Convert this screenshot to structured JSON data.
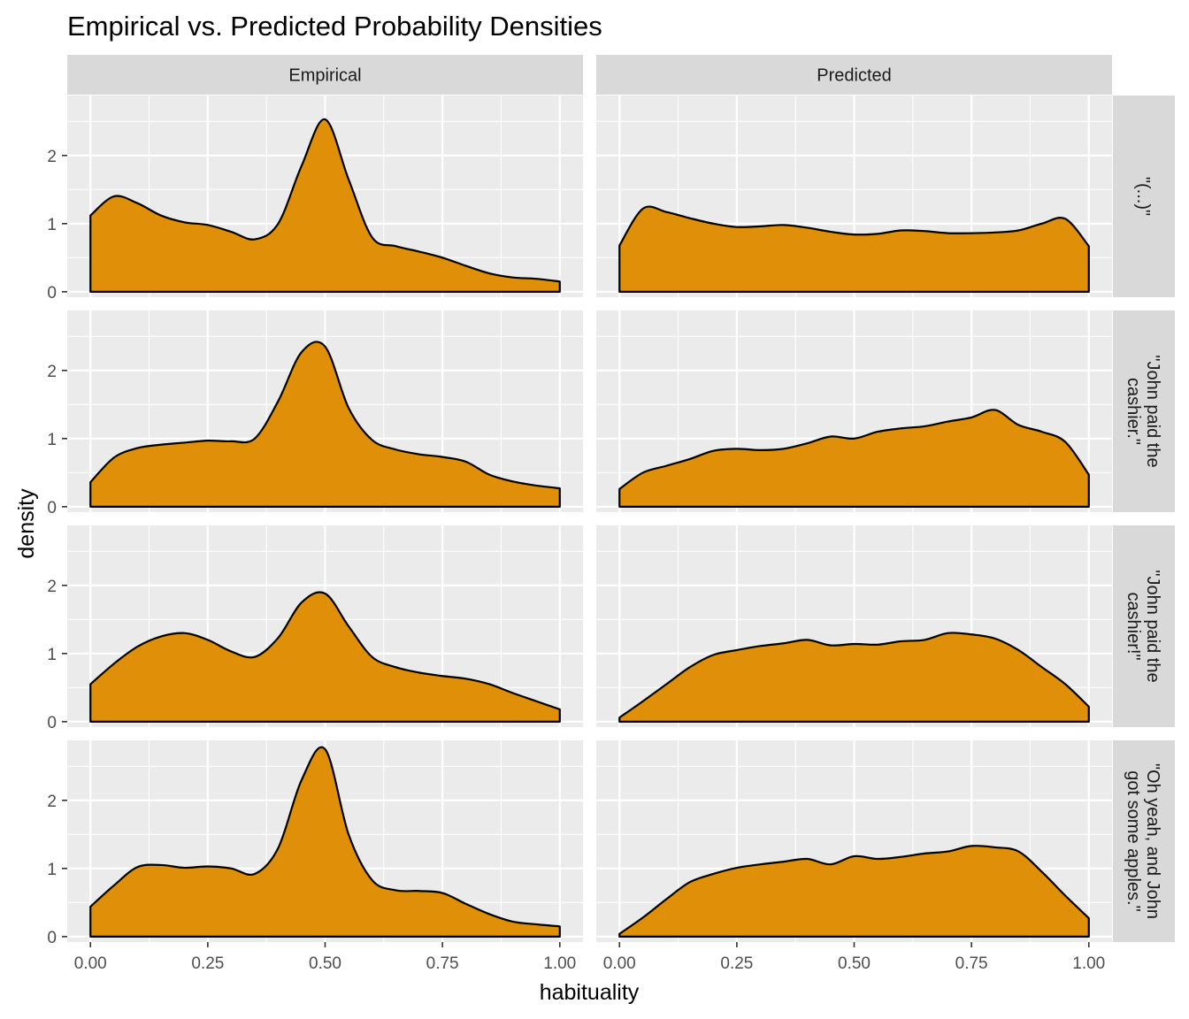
{
  "chart_data": {
    "type": "area",
    "title": "Empirical vs. Predicted Probability Densities",
    "xlabel": "habituality",
    "ylabel": "density",
    "xlim": [
      0,
      1
    ],
    "ylim": [
      0,
      2.6
    ],
    "x_ticks": [
      "0.00",
      "0.25",
      "0.50",
      "0.75",
      "1.00"
    ],
    "y_ticks": [
      "0",
      "1",
      "2"
    ],
    "fill_color": "#DF8F08",
    "columns": [
      "Empirical",
      "Predicted"
    ],
    "rows": [
      "\"(...)\"",
      "\"John paid the cashier.\"",
      "\"John paid the cashier!\"",
      "\"Oh yeah, and John got some apples.\""
    ],
    "x": [
      0,
      0.05,
      0.1,
      0.15,
      0.2,
      0.25,
      0.3,
      0.35,
      0.4,
      0.45,
      0.5,
      0.55,
      0.6,
      0.65,
      0.7,
      0.75,
      0.8,
      0.85,
      0.9,
      0.95,
      1.0
    ],
    "panels": [
      {
        "row": 0,
        "col": 0,
        "y": [
          1.12,
          1.4,
          1.3,
          1.12,
          1.02,
          0.98,
          0.88,
          0.77,
          1.0,
          1.85,
          2.53,
          1.65,
          0.8,
          0.67,
          0.59,
          0.5,
          0.38,
          0.27,
          0.21,
          0.19,
          0.15
        ]
      },
      {
        "row": 0,
        "col": 1,
        "y": [
          0.68,
          1.22,
          1.17,
          1.08,
          1.0,
          0.95,
          0.96,
          0.98,
          0.94,
          0.88,
          0.84,
          0.85,
          0.9,
          0.89,
          0.86,
          0.86,
          0.87,
          0.9,
          1.0,
          1.07,
          0.67
        ]
      },
      {
        "row": 1,
        "col": 0,
        "y": [
          0.36,
          0.72,
          0.86,
          0.91,
          0.94,
          0.97,
          0.96,
          1.0,
          1.55,
          2.27,
          2.35,
          1.45,
          0.98,
          0.84,
          0.77,
          0.73,
          0.66,
          0.47,
          0.37,
          0.31,
          0.27
        ]
      },
      {
        "row": 1,
        "col": 1,
        "y": [
          0.26,
          0.5,
          0.6,
          0.7,
          0.82,
          0.85,
          0.83,
          0.85,
          0.93,
          1.03,
          1.0,
          1.1,
          1.15,
          1.18,
          1.25,
          1.31,
          1.42,
          1.2,
          1.1,
          0.95,
          0.47
        ]
      },
      {
        "row": 2,
        "col": 0,
        "y": [
          0.55,
          0.85,
          1.1,
          1.25,
          1.3,
          1.2,
          1.03,
          0.95,
          1.23,
          1.75,
          1.88,
          1.4,
          0.95,
          0.8,
          0.72,
          0.67,
          0.63,
          0.55,
          0.42,
          0.3,
          0.18
        ]
      },
      {
        "row": 2,
        "col": 1,
        "y": [
          0.06,
          0.3,
          0.55,
          0.8,
          0.98,
          1.05,
          1.11,
          1.15,
          1.2,
          1.12,
          1.14,
          1.13,
          1.18,
          1.2,
          1.3,
          1.28,
          1.22,
          1.05,
          0.8,
          0.55,
          0.22
        ]
      },
      {
        "row": 3,
        "col": 0,
        "y": [
          0.44,
          0.75,
          1.02,
          1.05,
          1.01,
          1.03,
          1.0,
          0.92,
          1.3,
          2.3,
          2.75,
          1.5,
          0.83,
          0.68,
          0.67,
          0.64,
          0.48,
          0.33,
          0.22,
          0.18,
          0.15
        ]
      },
      {
        "row": 3,
        "col": 1,
        "y": [
          0.04,
          0.28,
          0.55,
          0.8,
          0.92,
          1.01,
          1.06,
          1.1,
          1.14,
          1.06,
          1.18,
          1.14,
          1.17,
          1.22,
          1.25,
          1.33,
          1.31,
          1.25,
          0.95,
          0.6,
          0.27
        ]
      }
    ]
  }
}
